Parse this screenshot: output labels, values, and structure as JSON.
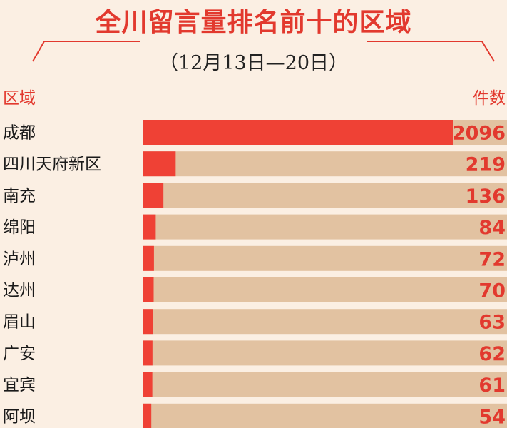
{
  "chart_data": {
    "type": "bar",
    "title": "全川留言量排名前十的区域",
    "subtitle": "（12月13日—20日）",
    "category_header": "区域",
    "value_header": "件数",
    "categories": [
      "成都",
      "四川天府新区",
      "南充",
      "绵阳",
      "泸州",
      "达州",
      "眉山",
      "广安",
      "宜宾",
      "阿坝"
    ],
    "values": [
      2096,
      219,
      136,
      84,
      72,
      70,
      63,
      62,
      61,
      54
    ],
    "xlim": [
      0,
      2096
    ],
    "colors": {
      "bar": "#ef4135",
      "track": "#e2c2a1",
      "value_text": "#e2392e",
      "label_text": "#1a1a1a",
      "accent": "#e2392e"
    }
  }
}
